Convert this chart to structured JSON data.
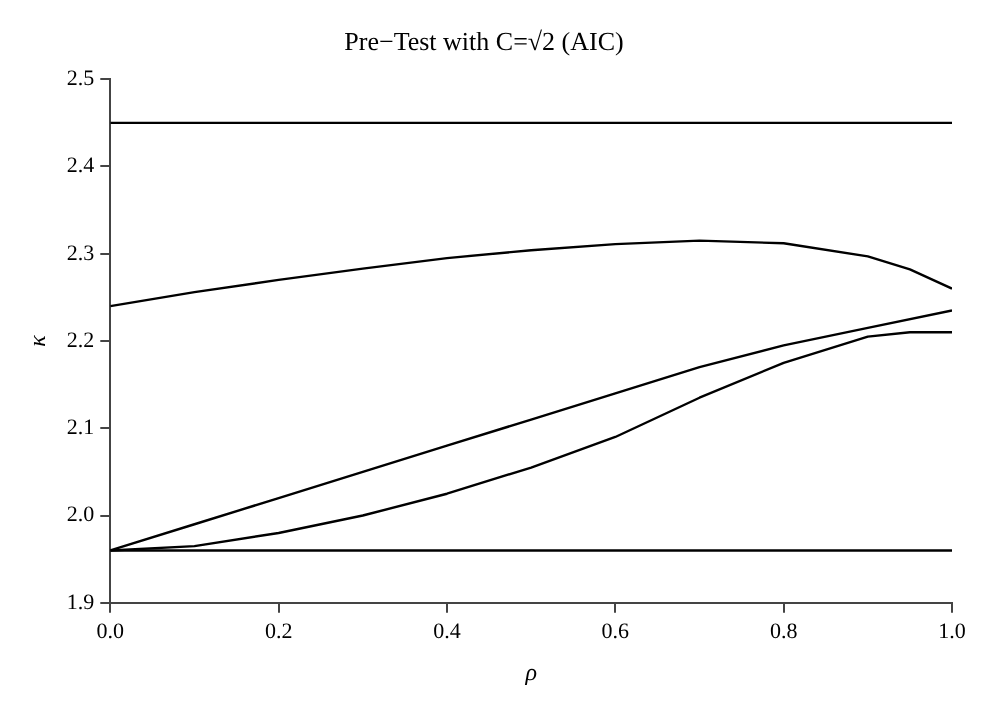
{
  "chart_data": {
    "type": "line",
    "title": "Pre−Test with C=√2 (AIC)",
    "xlabel": "ρ",
    "ylabel": "κ",
    "marker": "none",
    "line_style": "solid",
    "grid": false,
    "legend": false,
    "xlim": [
      0,
      1
    ],
    "xticks": [
      {
        "value": 0,
        "label": "0.0"
      },
      0.2,
      0.4,
      0.6,
      0.8,
      {
        "value": 1,
        "label": "1.0"
      }
    ],
    "ylim": [
      1.9,
      2.5
    ],
    "yticks": [
      1.9,
      {
        "value": 2,
        "label": "2.0"
      },
      2.1,
      2.2,
      2.3,
      2.4,
      2.5
    ],
    "series": [
      {
        "color": "#000000",
        "x": [
          0,
          1
        ],
        "values": [
          2.45,
          2.45
        ]
      },
      {
        "color": "#000000",
        "x": [
          0,
          0.1,
          0.2,
          0.3,
          0.4,
          0.5,
          0.6,
          0.7,
          0.8,
          0.9,
          0.95,
          1
        ],
        "values": [
          2.24,
          2.256,
          2.27,
          2.283,
          2.295,
          2.304,
          2.311,
          2.315,
          2.312,
          2.297,
          2.282,
          2.26
        ]
      },
      {
        "color": "#000000",
        "x": [
          0,
          0.1,
          0.2,
          0.3,
          0.4,
          0.5,
          0.6,
          0.7,
          0.8,
          0.9,
          1
        ],
        "values": [
          1.96,
          1.99,
          2.02,
          2.05,
          2.08,
          2.11,
          2.14,
          2.17,
          2.195,
          2.215,
          2.235
        ]
      },
      {
        "color": "#000000",
        "x": [
          0,
          0.1,
          0.2,
          0.3,
          0.4,
          0.5,
          0.6,
          0.7,
          0.8,
          0.9,
          0.95,
          1
        ],
        "values": [
          1.96,
          1.965,
          1.98,
          2.0,
          2.025,
          2.055,
          2.09,
          2.135,
          2.175,
          2.205,
          2.21,
          2.21
        ]
      },
      {
        "color": "#000000",
        "x": [
          0,
          1
        ],
        "values": [
          1.96,
          1.96
        ]
      }
    ]
  }
}
